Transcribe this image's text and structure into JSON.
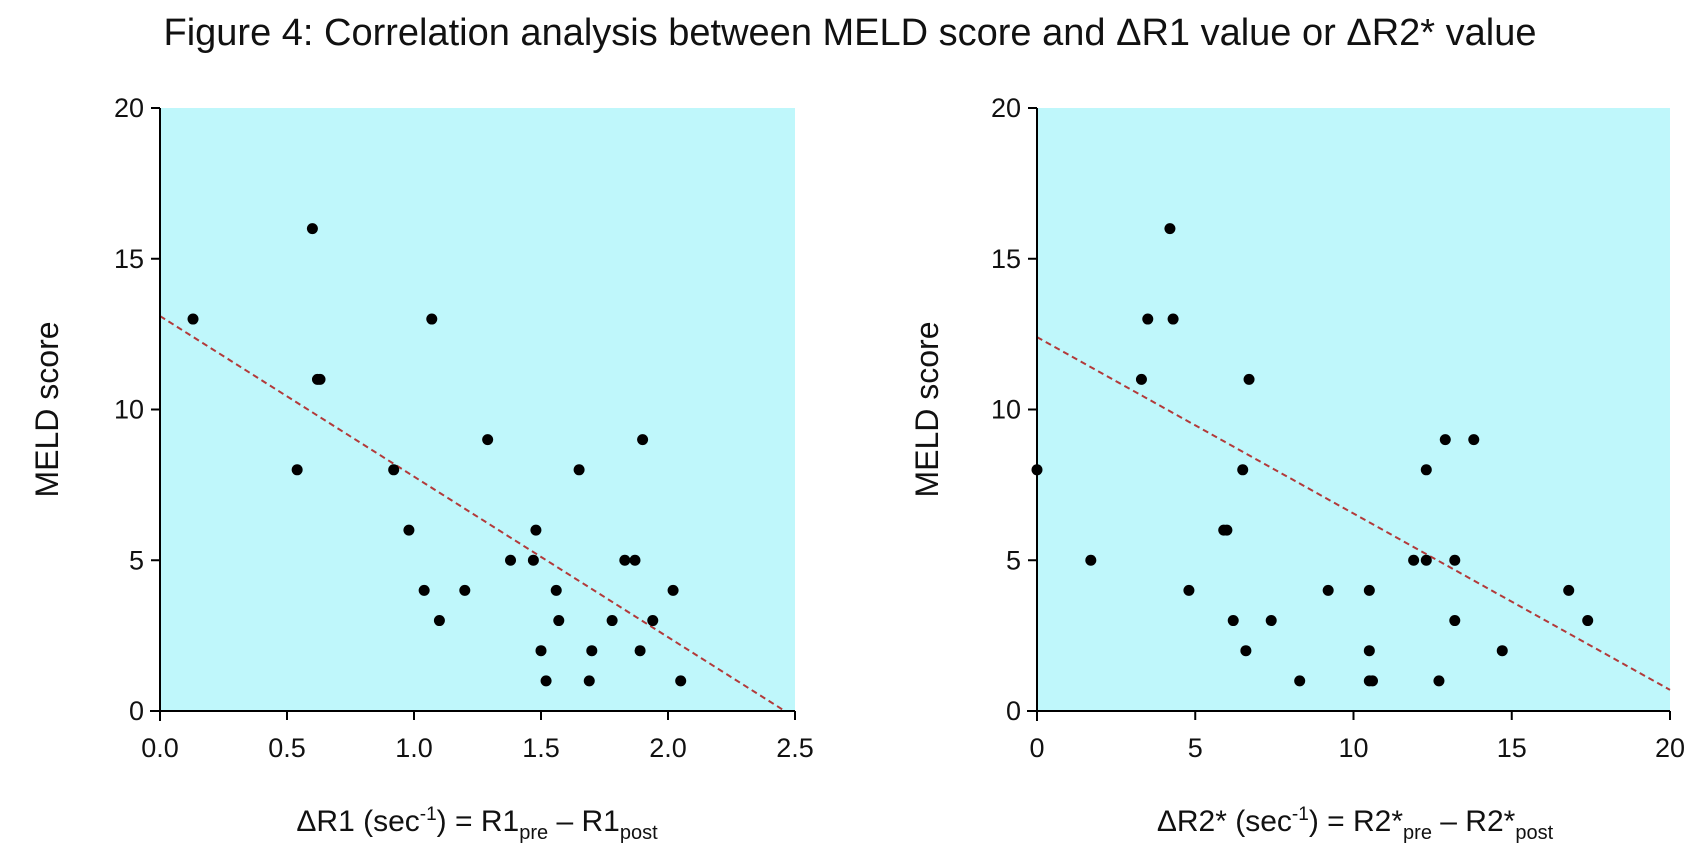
{
  "figure_title": "Figure 4: Correlation analysis between MELD score and ΔR1 value or ΔR2* value",
  "colors": {
    "plot_bg": "#bff7fb",
    "point": "#000000",
    "trend": "#b23a3a",
    "axis": "#000000"
  },
  "chart_data": [
    {
      "type": "scatter",
      "title": "",
      "xlabel": {
        "main": "ΔR1 (sec",
        "sup": "-1",
        "mid": ") = R1",
        "sub1": "pre",
        "dash": " – R1",
        "sub2": "post"
      },
      "ylabel": "MELD score",
      "xlim": [
        0,
        2.5
      ],
      "ylim": [
        0,
        20
      ],
      "xticks": [
        0,
        0.5,
        1.0,
        1.5,
        2.0,
        2.5
      ],
      "xtick_labels": [
        "0.0",
        "0.5",
        "1.0",
        "1.5",
        "2.0",
        "2.5"
      ],
      "yticks": [
        0,
        5,
        10,
        15,
        20
      ],
      "ytick_labels": [
        "0",
        "5",
        "10",
        "15",
        "20"
      ],
      "x": [
        0.13,
        0.54,
        0.6,
        0.62,
        0.63,
        0.92,
        0.98,
        1.04,
        1.07,
        1.1,
        1.2,
        1.29,
        1.38,
        1.47,
        1.48,
        1.5,
        1.52,
        1.56,
        1.57,
        1.65,
        1.69,
        1.7,
        1.78,
        1.83,
        1.87,
        1.89,
        1.9,
        1.94,
        2.02,
        2.05
      ],
      "y": [
        13,
        8,
        16,
        11,
        11,
        8,
        6,
        4,
        13,
        3,
        4,
        9,
        5,
        5,
        6,
        2,
        1,
        4,
        3,
        8,
        1,
        2,
        3,
        5,
        5,
        2,
        9,
        3,
        4,
        1
      ],
      "trendline": {
        "style": "dashed",
        "x": [
          0,
          2.46
        ],
        "y": [
          13.1,
          0
        ]
      }
    },
    {
      "type": "scatter",
      "title": "",
      "xlabel": {
        "main": "ΔR2* (sec",
        "sup": "-1",
        "mid": ") = R2*",
        "sub1": "pre",
        "dash": " – R2*",
        "sub2": "post"
      },
      "ylabel": "MELD score",
      "xlim": [
        0,
        20
      ],
      "ylim": [
        0,
        20
      ],
      "xticks": [
        0,
        5,
        10,
        15,
        20
      ],
      "xtick_labels": [
        "0",
        "5",
        "10",
        "15",
        "20"
      ],
      "yticks": [
        0,
        5,
        10,
        15,
        20
      ],
      "ytick_labels": [
        "0",
        "5",
        "10",
        "15",
        "20"
      ],
      "x": [
        0.0,
        1.7,
        3.3,
        3.5,
        4.2,
        4.3,
        4.8,
        5.9,
        6.0,
        6.2,
        6.5,
        6.6,
        6.7,
        7.4,
        8.3,
        9.2,
        10.5,
        10.5,
        10.5,
        10.6,
        11.9,
        12.3,
        12.3,
        12.7,
        12.9,
        13.2,
        13.2,
        13.8,
        14.7,
        16.8,
        17.4
      ],
      "y": [
        8,
        5,
        11,
        13,
        16,
        13,
        4,
        6,
        6,
        3,
        8,
        2,
        11,
        3,
        1,
        4,
        4,
        2,
        1,
        1,
        5,
        5,
        8,
        1,
        9,
        5,
        3,
        9,
        2,
        4,
        3
      ],
      "trendline": {
        "style": "dashed",
        "x": [
          0,
          20
        ],
        "y": [
          12.4,
          0.7
        ]
      }
    }
  ]
}
